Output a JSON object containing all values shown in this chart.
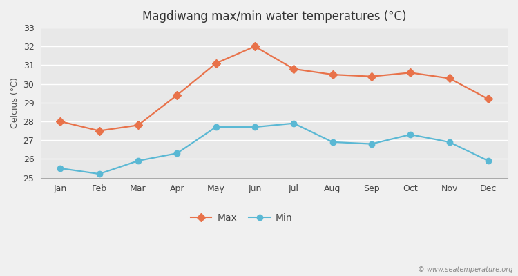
{
  "title": "Magdiwang max/min water temperatures (°C)",
  "ylabel": "Celcius (°C)",
  "months": [
    "Jan",
    "Feb",
    "Mar",
    "Apr",
    "May",
    "Jun",
    "Jul",
    "Aug",
    "Sep",
    "Oct",
    "Nov",
    "Dec"
  ],
  "max_temps": [
    28.0,
    27.5,
    27.8,
    29.4,
    31.1,
    32.0,
    30.8,
    30.5,
    30.4,
    30.6,
    30.3,
    29.2
  ],
  "min_temps": [
    25.5,
    25.2,
    25.9,
    26.3,
    27.7,
    27.7,
    27.9,
    26.9,
    26.8,
    27.3,
    26.9,
    25.9
  ],
  "max_color": "#e8724a",
  "min_color": "#5ab8d4",
  "fig_bg_color": "#f0f0f0",
  "plot_bg_color": "#e8e8e8",
  "grid_color": "#ffffff",
  "ylim": [
    25,
    33
  ],
  "yticks": [
    25,
    26,
    27,
    28,
    29,
    30,
    31,
    32,
    33
  ],
  "watermark": "© www.seatemperature.org",
  "legend_max": "Max",
  "legend_min": "Min",
  "title_fontsize": 12,
  "axis_label_fontsize": 9,
  "tick_fontsize": 9
}
